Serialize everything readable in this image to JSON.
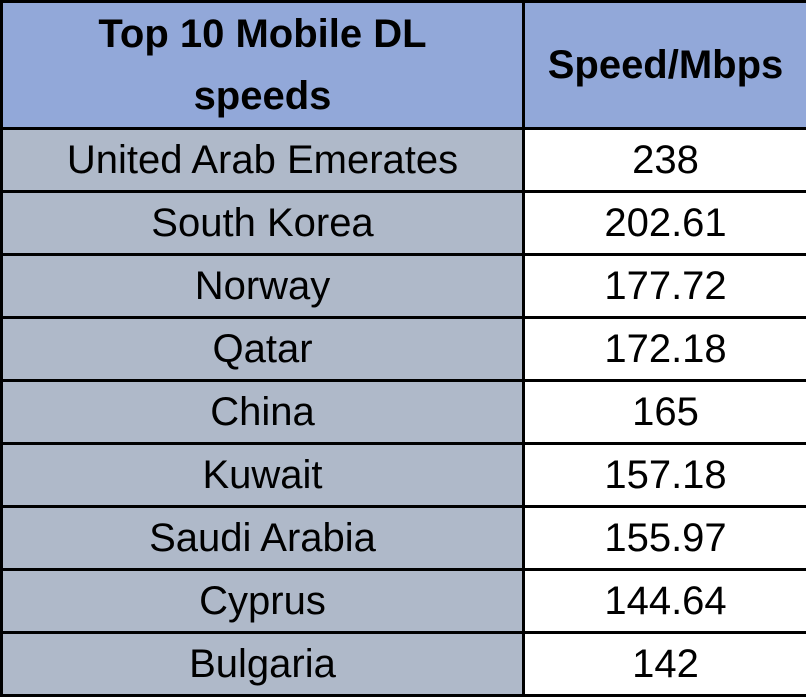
{
  "table": {
    "name": "Top 10 Mobile DL speeds",
    "header": {
      "country_col": "Top 10 Mobile DL speeds",
      "speed_col": "Speed/Mbps"
    },
    "rows": [
      {
        "country": "United Arab Emerates",
        "speed": "238"
      },
      {
        "country": "South Korea",
        "speed": "202.61"
      },
      {
        "country": "Norway",
        "speed": "177.72"
      },
      {
        "country": "Qatar",
        "speed": "172.18"
      },
      {
        "country": "China",
        "speed": "165"
      },
      {
        "country": "Kuwait",
        "speed": "157.18"
      },
      {
        "country": "Saudi Arabia",
        "speed": "155.97"
      },
      {
        "country": "Cyprus",
        "speed": "144.64"
      },
      {
        "country": "Bulgaria",
        "speed": "142"
      }
    ]
  },
  "colors": {
    "header_bg": "#92A8D9",
    "country_bg": "#AFB9C9",
    "value_bg": "#FFFFFF",
    "border": "#000000",
    "text": "#000000"
  },
  "chart_data": {
    "type": "table",
    "title": "Top 10 Mobile DL speeds",
    "columns": [
      "Top 10 Mobile DL speeds",
      "Speed/Mbps"
    ],
    "categories": [
      "United Arab Emerates",
      "South Korea",
      "Norway",
      "Qatar",
      "China",
      "Kuwait",
      "Saudi Arabia",
      "Cyprus",
      "Bulgaria"
    ],
    "values": [
      238,
      202.61,
      177.72,
      172.18,
      165,
      157.18,
      155.97,
      144.64,
      142
    ],
    "unit": "Mbps",
    "legend_position": "none",
    "grid": "table-borders"
  }
}
